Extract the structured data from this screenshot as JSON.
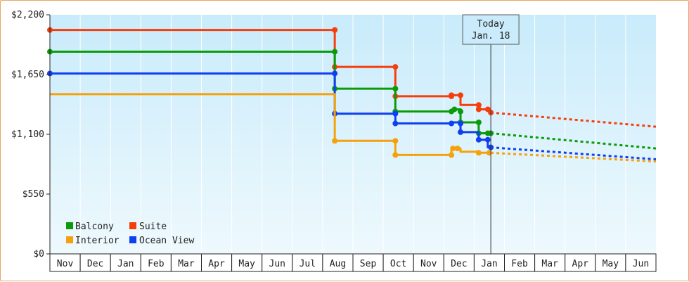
{
  "chart_data": {
    "type": "line",
    "y_ticks": [
      "$0",
      "$550",
      "$1,100",
      "$1,650",
      "$2,200"
    ],
    "y_tick_values": [
      0,
      550,
      1100,
      1650,
      2200
    ],
    "ylim": [
      0,
      2200
    ],
    "x_months": [
      "Nov",
      "Dec",
      "Jan",
      "Feb",
      "Mar",
      "Apr",
      "May",
      "Jun",
      "Jul",
      "Aug",
      "Sep",
      "Oct",
      "Nov",
      "Dec",
      "Jan",
      "Feb",
      "Mar",
      "Apr",
      "May",
      "Jun"
    ],
    "today_label_line1": "Today",
    "today_label_line2": "Jan. 18",
    "today_index": 14.55,
    "background_top": "#c9ebfb",
    "background_bottom": "#eef9fd",
    "legend": [
      {
        "name": "Balcony",
        "color": "#0a9b0a"
      },
      {
        "name": "Suite",
        "color": "#f43f0c"
      },
      {
        "name": "Interior",
        "color": "#f5a20a"
      },
      {
        "name": "Ocean View",
        "color": "#0f3ff2"
      }
    ],
    "series": [
      {
        "name": "Suite",
        "color": "#f43f0c",
        "points": [
          [
            0,
            2060
          ],
          [
            9.4,
            2060
          ],
          [
            9.4,
            1720
          ],
          [
            11.4,
            1720
          ],
          [
            11.4,
            1450
          ],
          [
            13.25,
            1450
          ],
          [
            13.25,
            1460
          ],
          [
            13.55,
            1460
          ],
          [
            13.55,
            1370
          ],
          [
            14.15,
            1370
          ],
          [
            14.15,
            1330
          ],
          [
            14.5,
            1330
          ],
          [
            14.5,
            1300
          ]
        ],
        "markers": [
          [
            0,
            2060
          ],
          [
            9.4,
            2060
          ],
          [
            9.4,
            1720
          ],
          [
            11.4,
            1720
          ],
          [
            11.4,
            1450
          ],
          [
            13.25,
            1450
          ],
          [
            13.25,
            1460
          ],
          [
            13.55,
            1460
          ],
          [
            14.15,
            1370
          ],
          [
            14.15,
            1330
          ],
          [
            14.45,
            1330
          ],
          [
            14.55,
            1300
          ]
        ],
        "forecast": [
          [
            14.55,
            1300
          ],
          [
            20,
            1170
          ]
        ]
      },
      {
        "name": "Balcony",
        "color": "#0a9b0a",
        "points": [
          [
            0,
            1860
          ],
          [
            9.4,
            1860
          ],
          [
            9.4,
            1520
          ],
          [
            11.4,
            1520
          ],
          [
            11.4,
            1310
          ],
          [
            13.3,
            1310
          ],
          [
            13.3,
            1330
          ],
          [
            13.55,
            1330
          ],
          [
            13.55,
            1210
          ],
          [
            14.15,
            1210
          ],
          [
            14.15,
            1110
          ],
          [
            14.55,
            1110
          ]
        ],
        "markers": [
          [
            0,
            1860
          ],
          [
            9.4,
            1860
          ],
          [
            9.4,
            1520
          ],
          [
            11.4,
            1520
          ],
          [
            11.4,
            1310
          ],
          [
            13.25,
            1310
          ],
          [
            13.35,
            1330
          ],
          [
            13.55,
            1310
          ],
          [
            13.55,
            1210
          ],
          [
            14.15,
            1210
          ],
          [
            14.15,
            1110
          ],
          [
            14.45,
            1110
          ],
          [
            14.55,
            1110
          ]
        ],
        "forecast": [
          [
            14.55,
            1110
          ],
          [
            20,
            970
          ]
        ]
      },
      {
        "name": "Ocean View",
        "color": "#0f3ff2",
        "points": [
          [
            0,
            1660
          ],
          [
            9.4,
            1660
          ],
          [
            9.4,
            1290
          ],
          [
            11.4,
            1290
          ],
          [
            11.4,
            1200
          ],
          [
            13.25,
            1200
          ],
          [
            13.25,
            1210
          ],
          [
            13.55,
            1210
          ],
          [
            13.55,
            1120
          ],
          [
            14.15,
            1120
          ],
          [
            14.15,
            1050
          ],
          [
            14.45,
            1050
          ],
          [
            14.45,
            980
          ],
          [
            14.55,
            980
          ]
        ],
        "markers": [
          [
            0,
            1660
          ],
          [
            9.4,
            1660
          ],
          [
            9.4,
            1290
          ],
          [
            11.4,
            1290
          ],
          [
            11.4,
            1200
          ],
          [
            13.25,
            1200
          ],
          [
            13.55,
            1200
          ],
          [
            13.55,
            1120
          ],
          [
            14.15,
            1050
          ],
          [
            14.45,
            1050
          ],
          [
            14.55,
            980
          ]
        ],
        "forecast": [
          [
            14.55,
            980
          ],
          [
            20,
            870
          ]
        ]
      },
      {
        "name": "Interior",
        "color": "#f5a20a",
        "points": [
          [
            0,
            1470
          ],
          [
            9.4,
            1470
          ],
          [
            9.4,
            1040
          ],
          [
            11.4,
            1040
          ],
          [
            11.4,
            910
          ],
          [
            13.25,
            910
          ],
          [
            13.25,
            970
          ],
          [
            13.55,
            970
          ],
          [
            13.55,
            940
          ],
          [
            14.15,
            940
          ],
          [
            14.15,
            930
          ],
          [
            14.55,
            930
          ]
        ],
        "markers": [
          [
            9.4,
            1040
          ],
          [
            11.4,
            1040
          ],
          [
            11.4,
            910
          ],
          [
            13.25,
            910
          ],
          [
            13.3,
            970
          ],
          [
            13.45,
            970
          ],
          [
            14.15,
            930
          ],
          [
            14.5,
            930
          ]
        ],
        "forecast": [
          [
            14.55,
            930
          ],
          [
            20,
            850
          ]
        ]
      }
    ]
  }
}
